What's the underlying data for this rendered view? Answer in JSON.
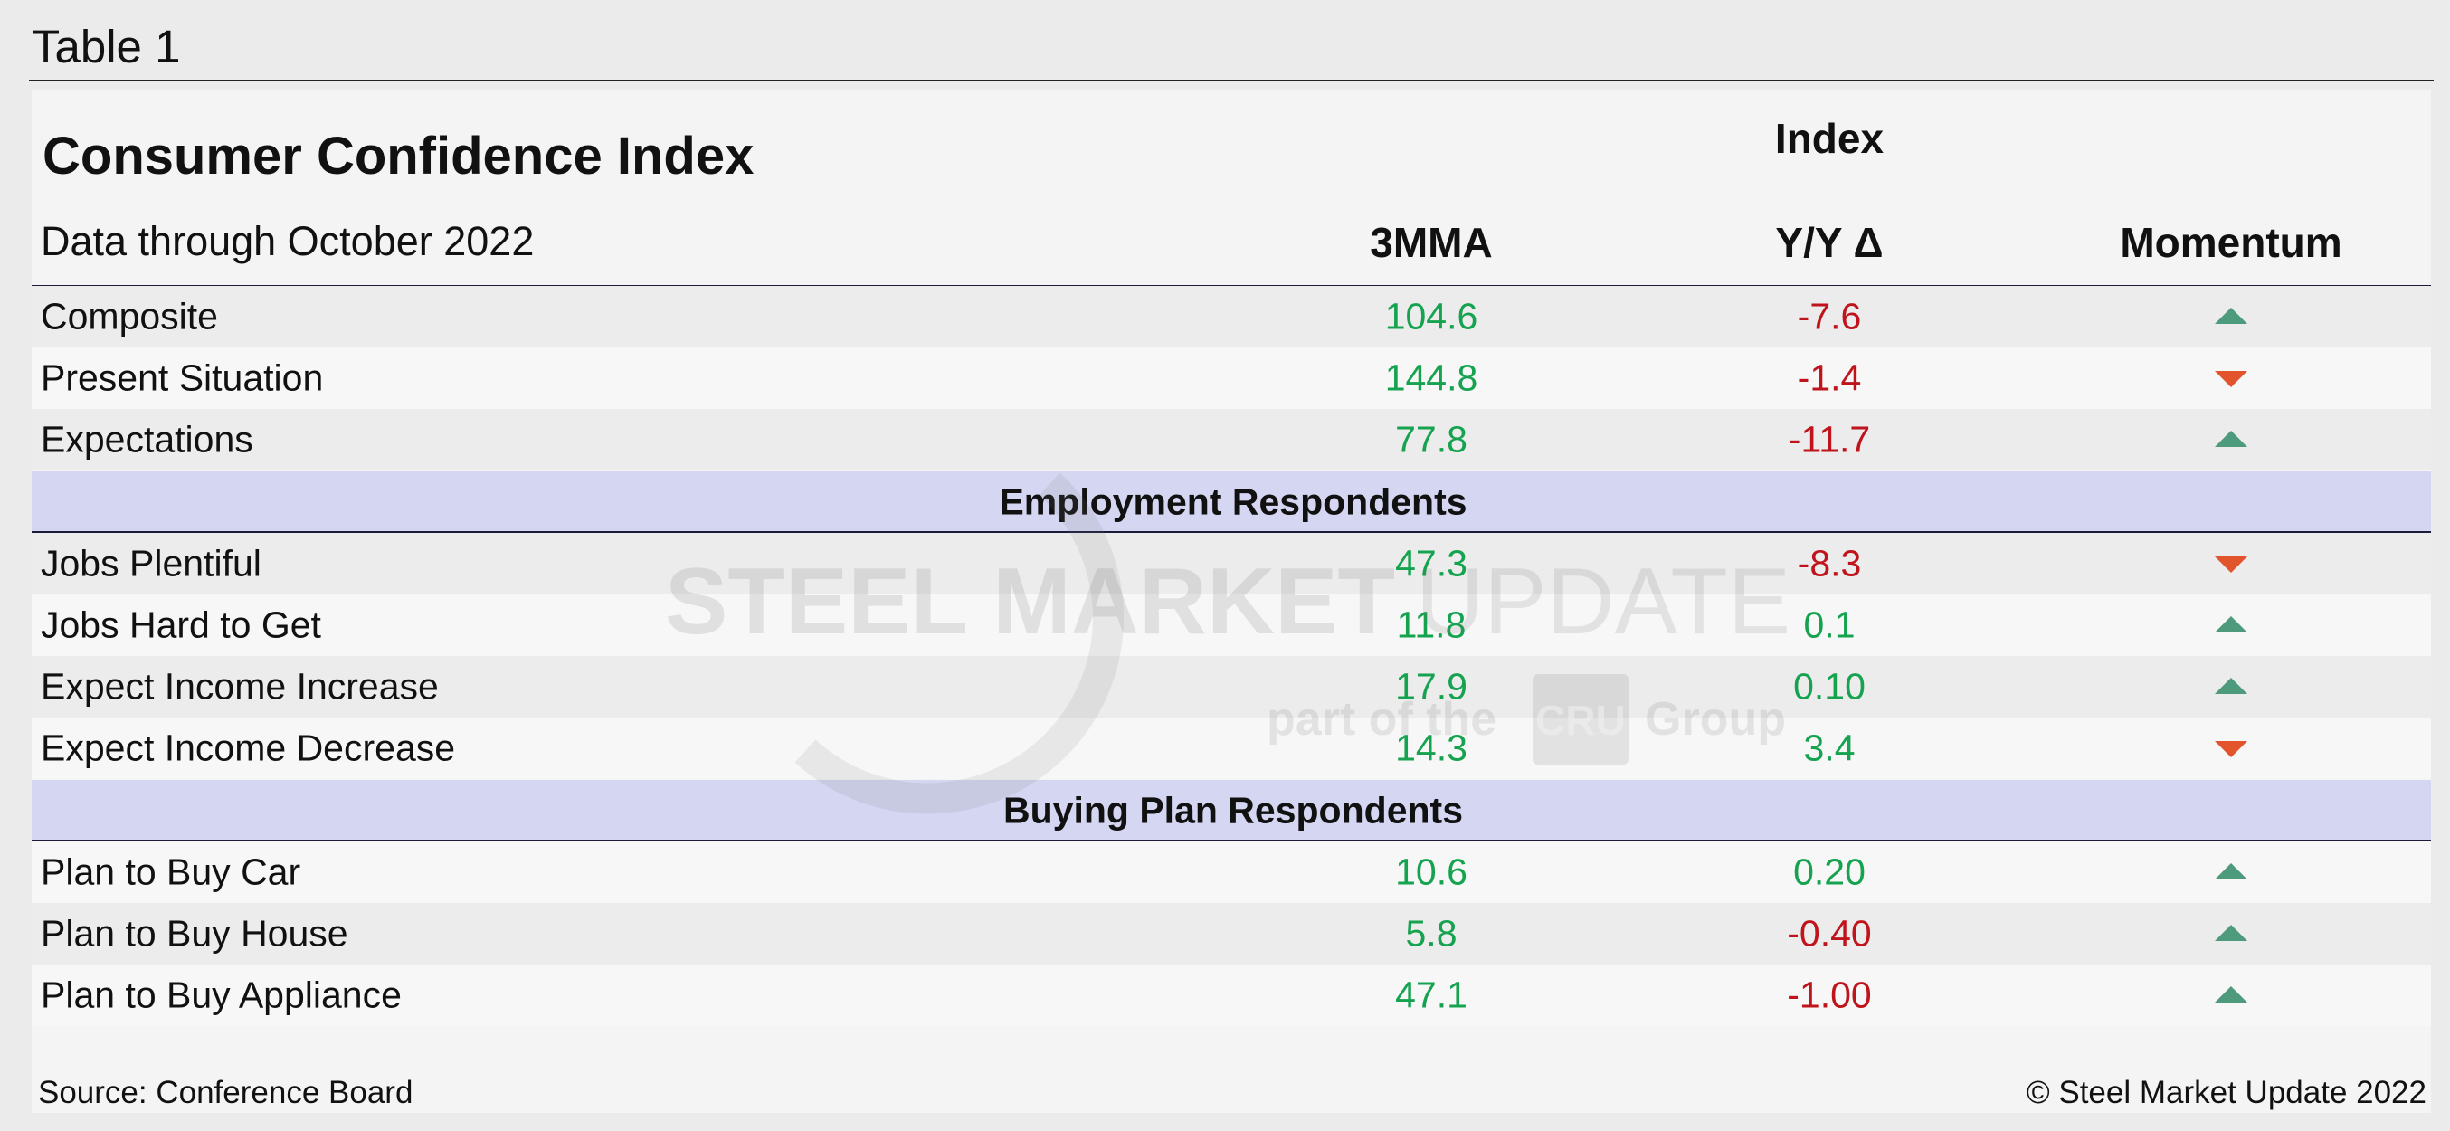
{
  "header": {
    "label": "Table 1"
  },
  "table": {
    "title": "Consumer Confidence Index",
    "subtitle": "Data through October 2022",
    "group_header": "Index",
    "columns": [
      "3MMA",
      "Y/Y Δ",
      "Momentum"
    ],
    "sections": [
      {
        "rows": [
          {
            "label": "Composite",
            "mma": "104.6",
            "yoy": "-7.6",
            "momentum": "up"
          },
          {
            "label": "Present Situation",
            "mma": "144.8",
            "yoy": "-1.4",
            "momentum": "down"
          },
          {
            "label": "Expectations",
            "mma": "77.8",
            "yoy": "-11.7",
            "momentum": "up"
          }
        ]
      },
      {
        "heading": "Employment Respondents",
        "rows": [
          {
            "label": "Jobs Plentiful",
            "mma": "47.3",
            "yoy": "-8.3",
            "momentum": "down"
          },
          {
            "label": "Jobs Hard to Get",
            "mma": "11.8",
            "yoy": "0.1",
            "momentum": "up"
          },
          {
            "label": "Expect Income Increase",
            "mma": "17.9",
            "yoy": "0.10",
            "momentum": "up"
          },
          {
            "label": "Expect Income Decrease",
            "mma": "14.3",
            "yoy": "3.4",
            "momentum": "down"
          }
        ]
      },
      {
        "heading": "Buying Plan Respondents",
        "rows": [
          {
            "label": "Plan to Buy Car",
            "mma": "10.6",
            "yoy": "0.20",
            "momentum": "up"
          },
          {
            "label": "Plan to Buy House",
            "mma": "5.8",
            "yoy": "-0.40",
            "momentum": "up"
          },
          {
            "label": "Plan to Buy Appliance",
            "mma": "47.1",
            "yoy": "-1.00",
            "momentum": "up"
          }
        ]
      }
    ]
  },
  "watermark": {
    "brand_bold": "STEEL MARKET",
    "brand_light": "UPDATE",
    "tagline_pre": "part of the",
    "tagline_logo": "CRU",
    "tagline_post": "Group"
  },
  "footer": {
    "source": "Source: Conference Board",
    "copyright": "© Steel Market Update 2022"
  }
}
